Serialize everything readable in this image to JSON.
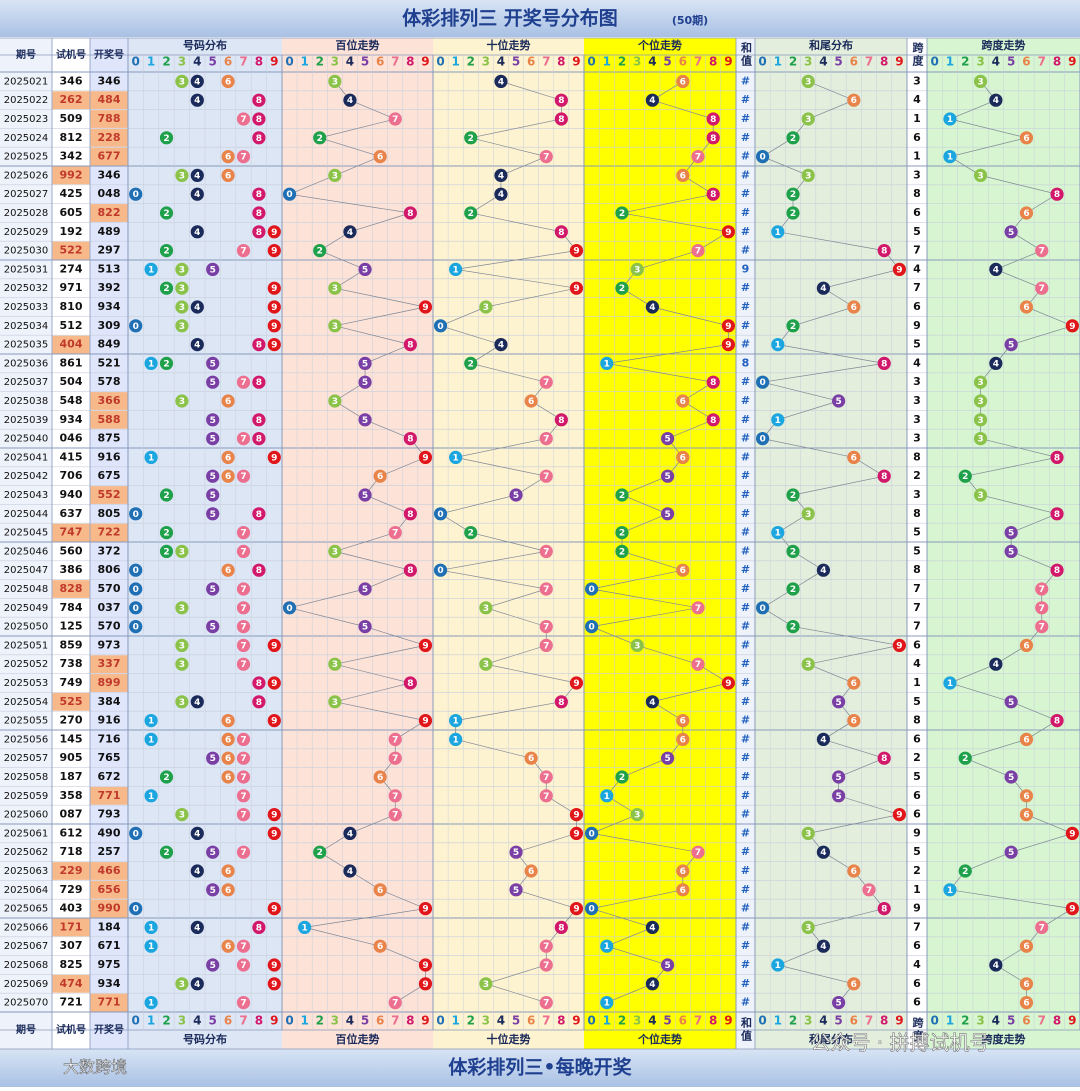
{
  "header": {
    "title": "体彩排列三 开奖号分布图",
    "subtitle": "(50期)"
  },
  "columns": {
    "period": "期号",
    "trial": "试机号",
    "draw": "开奖号",
    "dist": "号码分布",
    "hundreds": "百位走势",
    "tens": "十位走势",
    "units": "个位走势",
    "sum": "和值",
    "tail": "和尾分布",
    "span": "跨度",
    "span_trend": "跨度走势"
  },
  "digits": [
    "0",
    "1",
    "2",
    "3",
    "4",
    "5",
    "6",
    "7",
    "8",
    "9"
  ],
  "rows": [
    {
      "period": "2025021",
      "trial": "346",
      "draw": "346",
      "sum": "#",
      "span": 3
    },
    {
      "period": "2025022",
      "trial": "262",
      "draw": "484",
      "sum": "#",
      "span": 4
    },
    {
      "period": "2025023",
      "trial": "509",
      "draw": "788",
      "sum": "#",
      "span": 1
    },
    {
      "period": "2025024",
      "trial": "812",
      "draw": "228",
      "sum": "#",
      "span": 6
    },
    {
      "period": "2025025",
      "trial": "342",
      "draw": "677",
      "sum": "#",
      "span": 1
    },
    {
      "period": "2025026",
      "trial": "992",
      "draw": "346",
      "sum": "#",
      "span": 3
    },
    {
      "period": "2025027",
      "trial": "425",
      "draw": "048",
      "sum": "#",
      "span": 8
    },
    {
      "period": "2025028",
      "trial": "605",
      "draw": "822",
      "sum": "#",
      "span": 6
    },
    {
      "period": "2025029",
      "trial": "192",
      "draw": "489",
      "sum": "#",
      "span": 5
    },
    {
      "period": "2025030",
      "trial": "522",
      "draw": "297",
      "sum": "#",
      "span": 7
    },
    {
      "period": "2025031",
      "trial": "274",
      "draw": "513",
      "sum": "9",
      "span": 4
    },
    {
      "period": "2025032",
      "trial": "971",
      "draw": "392",
      "sum": "#",
      "span": 7
    },
    {
      "period": "2025033",
      "trial": "810",
      "draw": "934",
      "sum": "#",
      "span": 6
    },
    {
      "period": "2025034",
      "trial": "512",
      "draw": "309",
      "sum": "#",
      "span": 9
    },
    {
      "period": "2025035",
      "trial": "404",
      "draw": "849",
      "sum": "#",
      "span": 5
    },
    {
      "period": "2025036",
      "trial": "861",
      "draw": "521",
      "sum": "8",
      "span": 4
    },
    {
      "period": "2025037",
      "trial": "504",
      "draw": "578",
      "sum": "#",
      "span": 3
    },
    {
      "period": "2025038",
      "trial": "548",
      "draw": "366",
      "sum": "#",
      "span": 3
    },
    {
      "period": "2025039",
      "trial": "934",
      "draw": "588",
      "sum": "#",
      "span": 3
    },
    {
      "period": "2025040",
      "trial": "046",
      "draw": "875",
      "sum": "#",
      "span": 3
    },
    {
      "period": "2025041",
      "trial": "415",
      "draw": "916",
      "sum": "#",
      "span": 8
    },
    {
      "period": "2025042",
      "trial": "706",
      "draw": "675",
      "sum": "#",
      "span": 2
    },
    {
      "period": "2025043",
      "trial": "940",
      "draw": "552",
      "sum": "#",
      "span": 3
    },
    {
      "period": "2025044",
      "trial": "637",
      "draw": "805",
      "sum": "#",
      "span": 8
    },
    {
      "period": "2025045",
      "trial": "747",
      "draw": "722",
      "sum": "#",
      "span": 5
    },
    {
      "period": "2025046",
      "trial": "560",
      "draw": "372",
      "sum": "#",
      "span": 5
    },
    {
      "period": "2025047",
      "trial": "386",
      "draw": "806",
      "sum": "#",
      "span": 8
    },
    {
      "period": "2025048",
      "trial": "828",
      "draw": "570",
      "sum": "#",
      "span": 7
    },
    {
      "period": "2025049",
      "trial": "784",
      "draw": "037",
      "sum": "#",
      "span": 7
    },
    {
      "period": "2025050",
      "trial": "125",
      "draw": "570",
      "sum": "#",
      "span": 7
    },
    {
      "period": "2025051",
      "trial": "859",
      "draw": "973",
      "sum": "#",
      "span": 6
    },
    {
      "period": "2025052",
      "trial": "738",
      "draw": "337",
      "sum": "#",
      "span": 4
    },
    {
      "period": "2025053",
      "trial": "749",
      "draw": "899",
      "sum": "#",
      "span": 1
    },
    {
      "period": "2025054",
      "trial": "525",
      "draw": "384",
      "sum": "#",
      "span": 5
    },
    {
      "period": "2025055",
      "trial": "270",
      "draw": "916",
      "sum": "#",
      "span": 8
    },
    {
      "period": "2025056",
      "trial": "145",
      "draw": "716",
      "sum": "#",
      "span": 6
    },
    {
      "period": "2025057",
      "trial": "905",
      "draw": "765",
      "sum": "#",
      "span": 2
    },
    {
      "period": "2025058",
      "trial": "187",
      "draw": "672",
      "sum": "#",
      "span": 5
    },
    {
      "period": "2025059",
      "trial": "358",
      "draw": "771",
      "sum": "#",
      "span": 6
    },
    {
      "period": "2025060",
      "trial": "087",
      "draw": "793",
      "sum": "#",
      "span": 6
    },
    {
      "period": "2025061",
      "trial": "612",
      "draw": "490",
      "sum": "#",
      "span": 9
    },
    {
      "period": "2025062",
      "trial": "718",
      "draw": "257",
      "sum": "#",
      "span": 5
    },
    {
      "period": "2025063",
      "trial": "229",
      "draw": "466",
      "sum": "#",
      "span": 2
    },
    {
      "period": "2025064",
      "trial": "729",
      "draw": "656",
      "sum": "#",
      "span": 1
    },
    {
      "period": "2025065",
      "trial": "403",
      "draw": "990",
      "sum": "#",
      "span": 9
    },
    {
      "period": "2025066",
      "trial": "171",
      "draw": "184",
      "sum": "#",
      "span": 7
    },
    {
      "period": "2025067",
      "trial": "307",
      "draw": "671",
      "sum": "#",
      "span": 6
    },
    {
      "period": "2025068",
      "trial": "825",
      "draw": "975",
      "sum": "#",
      "span": 4
    },
    {
      "period": "2025069",
      "trial": "474",
      "draw": "934",
      "sum": "#",
      "span": 6
    },
    {
      "period": "2025070",
      "trial": "721",
      "draw": "771",
      "sum": "#",
      "span": 6
    }
  ],
  "footer": {
    "title": "体彩排列三•每晚开奖",
    "watermark": "大数跨境",
    "account": "公众号 · 拼搏试机号"
  }
}
